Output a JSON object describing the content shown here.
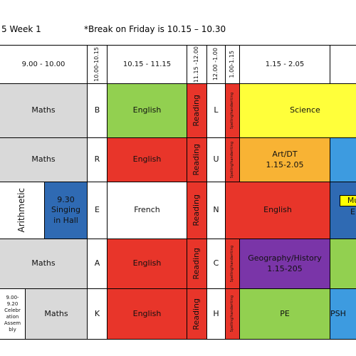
{
  "header": {
    "week": "5  Week 1",
    "note": "*Break on Friday is 10.15 – 10.30"
  },
  "times": [
    "9.00 - 10.00",
    "10.00-10.15",
    "10.15 - 11.15",
    "11.15 -12.00",
    "12.00 -1.00",
    "1.00-1.15",
    "1.15 - 2.05"
  ],
  "rows": [
    [
      "Maths",
      "B",
      "English",
      "Reading",
      "L",
      "Spelling/handwriting",
      "Science"
    ],
    [
      "Maths",
      "R",
      "English",
      "Reading",
      "U",
      "Spelling/handwriting",
      "Art/DT\n1.15-2.05"
    ],
    [
      "Arithmetic",
      "9.30\nSinging\nin Hall",
      "E",
      "French",
      "Reading",
      "N",
      "English",
      "Mus",
      "En"
    ],
    [
      "Maths",
      "A",
      "English",
      "Reading",
      "C",
      "Spelling/handwriting",
      "Geography/History\n1.15-205"
    ],
    [
      "9.00-\n9.20\nCelebr\nation\nAssem\nbly",
      "Maths",
      "K",
      "English",
      "Reading",
      "H",
      "Spelling/handwriting",
      "PE",
      "PSH"
    ]
  ]
}
